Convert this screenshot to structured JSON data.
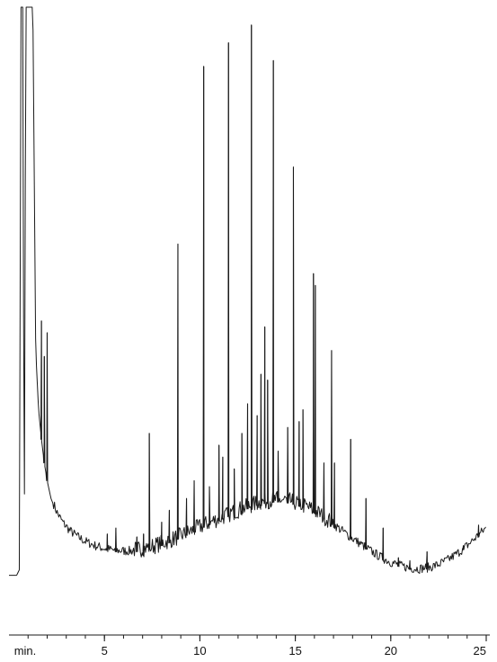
{
  "chart_data": {
    "type": "line",
    "title": "",
    "xlabel": "",
    "ylabel": "",
    "x_unit_label": "min.",
    "xlim": [
      0,
      25
    ],
    "x_ticks": [
      5,
      10,
      15,
      20,
      25
    ],
    "x_tick_labels": [
      "5",
      "10",
      "15",
      "20",
      "25"
    ],
    "y_axis_shown": false,
    "ylim": [
      0,
      100
    ],
    "grid": false,
    "legend": "none",
    "line_color": "#1a1a1a",
    "series": [
      {
        "points": [
          [
            0.0,
            4
          ],
          [
            0.4,
            4
          ],
          [
            0.55,
            5
          ],
          [
            0.62,
            100
          ],
          [
            0.72,
            100
          ],
          [
            0.8,
            6
          ],
          [
            0.88,
            100
          ],
          [
            1.1,
            100
          ],
          [
            1.25,
            100
          ],
          [
            1.4,
            42
          ],
          [
            1.55,
            32
          ],
          [
            1.7,
            27
          ],
          [
            1.85,
            23
          ],
          [
            2.0,
            20
          ],
          [
            2.2,
            17
          ],
          [
            2.5,
            14.5
          ],
          [
            2.8,
            12.8
          ],
          [
            3.2,
            11.3
          ],
          [
            3.6,
            10.3
          ],
          [
            4.0,
            9.5
          ],
          [
            4.5,
            8.8
          ],
          [
            5.0,
            8.3
          ],
          [
            5.5,
            8.0
          ],
          [
            6.0,
            7.9
          ],
          [
            6.5,
            7.9
          ],
          [
            7.0,
            8.1
          ],
          [
            7.5,
            8.5
          ],
          [
            8.0,
            9.0
          ],
          [
            8.5,
            9.6
          ],
          [
            9.0,
            10.3
          ],
          [
            9.5,
            11.0
          ],
          [
            10.0,
            11.8
          ],
          [
            10.5,
            12.5
          ],
          [
            11.0,
            13.2
          ],
          [
            11.5,
            13.9
          ],
          [
            12.0,
            14.6
          ],
          [
            12.5,
            15.2
          ],
          [
            13.0,
            15.8
          ],
          [
            13.5,
            16.2
          ],
          [
            14.0,
            16.4
          ],
          [
            14.5,
            16.3
          ],
          [
            15.0,
            15.9
          ],
          [
            15.5,
            15.3
          ],
          [
            16.0,
            14.5
          ],
          [
            16.5,
            13.5
          ],
          [
            17.0,
            12.4
          ],
          [
            17.5,
            11.2
          ],
          [
            18.0,
            10.0
          ],
          [
            18.5,
            8.9
          ],
          [
            19.0,
            7.8
          ],
          [
            19.5,
            6.8
          ],
          [
            20.0,
            6.0
          ],
          [
            20.5,
            5.4
          ],
          [
            21.0,
            5.0
          ],
          [
            21.5,
            4.9
          ],
          [
            22.0,
            5.1
          ],
          [
            22.5,
            5.6
          ],
          [
            23.0,
            6.4
          ],
          [
            23.5,
            7.5
          ],
          [
            24.0,
            8.8
          ],
          [
            24.5,
            10.3
          ],
          [
            25.0,
            11.8
          ]
        ],
        "peaks": [
          [
            1.7,
            47
          ],
          [
            1.85,
            41
          ],
          [
            2.0,
            45
          ],
          [
            5.15,
            11
          ],
          [
            5.6,
            12
          ],
          [
            6.7,
            10.5
          ],
          [
            7.05,
            11
          ],
          [
            7.35,
            28
          ],
          [
            8.0,
            13
          ],
          [
            8.4,
            15
          ],
          [
            8.85,
            60
          ],
          [
            9.3,
            17
          ],
          [
            9.7,
            20
          ],
          [
            10.2,
            90
          ],
          [
            10.5,
            19
          ],
          [
            11.0,
            26
          ],
          [
            11.2,
            24
          ],
          [
            11.5,
            94
          ],
          [
            11.8,
            22
          ],
          [
            12.2,
            28
          ],
          [
            12.5,
            33
          ],
          [
            12.7,
            97
          ],
          [
            13.0,
            31
          ],
          [
            13.2,
            38
          ],
          [
            13.4,
            46
          ],
          [
            13.55,
            37
          ],
          [
            13.85,
            91
          ],
          [
            14.1,
            25
          ],
          [
            14.6,
            29
          ],
          [
            14.9,
            73
          ],
          [
            15.2,
            30
          ],
          [
            15.4,
            32
          ],
          [
            15.95,
            55
          ],
          [
            16.05,
            53
          ],
          [
            16.5,
            23
          ],
          [
            16.9,
            42
          ],
          [
            17.05,
            23
          ],
          [
            17.9,
            27
          ],
          [
            18.7,
            17
          ],
          [
            19.6,
            12
          ],
          [
            20.4,
            7
          ],
          [
            21.0,
            6.5
          ],
          [
            21.9,
            8
          ],
          [
            23.8,
            9
          ],
          [
            24.6,
            12.5
          ]
        ]
      }
    ]
  }
}
